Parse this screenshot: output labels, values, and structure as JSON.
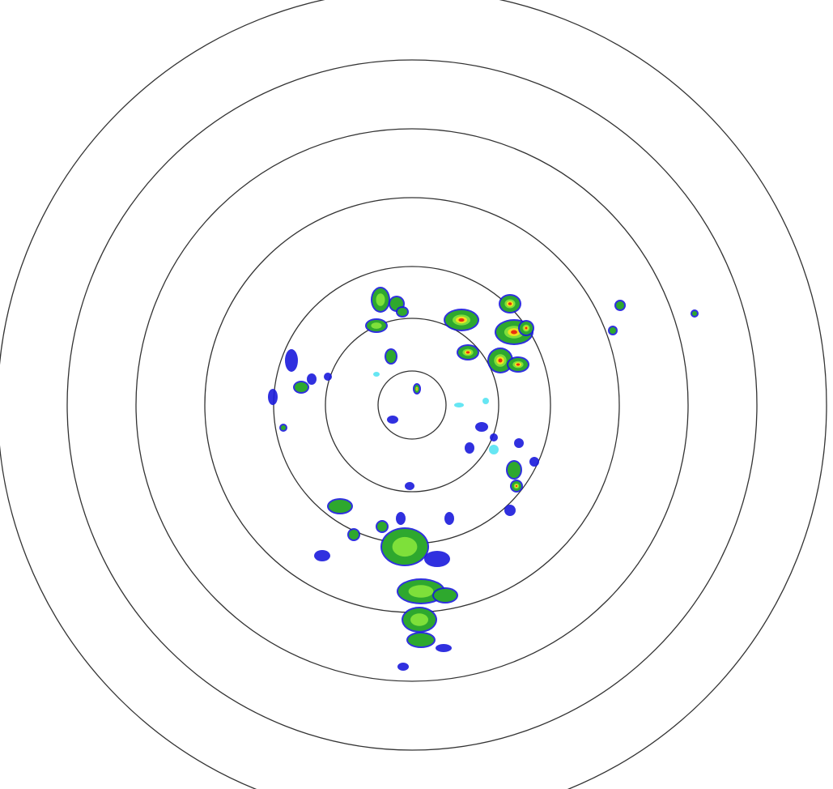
{
  "radar": {
    "ring_count": 7,
    "colors": {
      "ring": "#333333",
      "background": "#ffffff",
      "weak": "#1a1adc",
      "light": "#2ea82e",
      "moderate": "#7ee03a",
      "heavy": "#f0e020",
      "intense": "#e83010",
      "faint": "#40e0f0",
      "dim": "#505c80"
    }
  }
}
